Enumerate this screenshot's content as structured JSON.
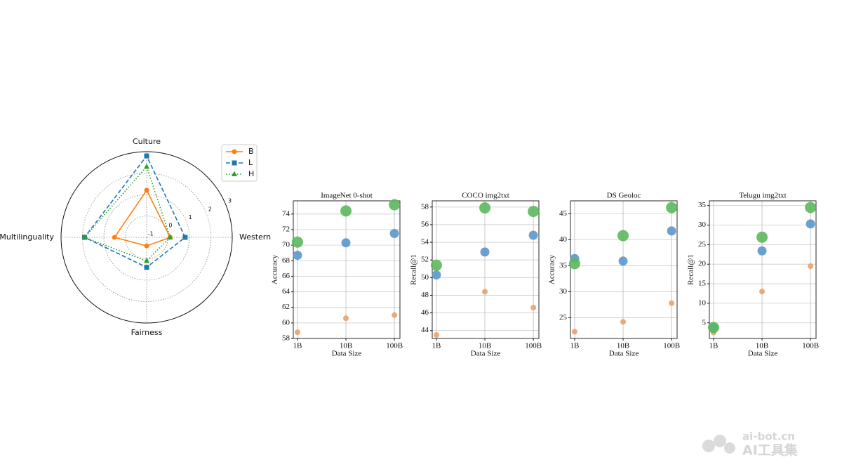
{
  "chart_data": [
    {
      "type": "radar",
      "categories": [
        "Western",
        "Culture",
        "Multilinguality",
        "Fairness"
      ],
      "rlim": [
        -1,
        3
      ],
      "rticks": [
        -1,
        0,
        1,
        2,
        3
      ],
      "legend": "upper right",
      "series": [
        {
          "name": "B",
          "color": "#ff7f0e",
          "marker": "circle",
          "linestyle": "solid",
          "values": [
            0.1,
            1.2,
            0.5,
            -0.6
          ]
        },
        {
          "name": "L",
          "color": "#1f77b4",
          "marker": "square",
          "linestyle": "dashed",
          "values": [
            0.8,
            2.8,
            1.9,
            0.4
          ]
        },
        {
          "name": "H",
          "color": "#2ca02c",
          "marker": "triangle",
          "linestyle": "dotted",
          "values": [
            0.1,
            2.3,
            1.9,
            0.1
          ]
        }
      ]
    },
    {
      "type": "scatter",
      "title": "ImageNet 0-shot",
      "x_label": "Data Size",
      "y_label": "Accuracy",
      "log_x": true,
      "grid": true,
      "x": [
        1,
        10,
        100
      ],
      "xlim": [
        0.82,
        130
      ],
      "xticks": [
        {
          "value": 1,
          "label": "1B"
        },
        {
          "value": 10,
          "label": "10B"
        },
        {
          "value": 100,
          "label": "100B"
        }
      ],
      "ylim": [
        58,
        75.7
      ],
      "yticks": [
        58,
        60,
        62,
        64,
        66,
        68,
        70,
        72,
        74
      ],
      "series": [
        {
          "color": "#e8a26a",
          "marker_size": 4,
          "values": [
            58.8,
            60.6,
            61.0
          ]
        },
        {
          "color": "#5b97c9",
          "marker_size": 6.5,
          "values": [
            68.7,
            70.3,
            71.5
          ]
        },
        {
          "color": "#5cb85c",
          "marker_size": 8,
          "values": [
            70.4,
            74.4,
            75.2
          ]
        }
      ]
    },
    {
      "type": "scatter",
      "title": "COCO img2txt",
      "x_label": "Data Size",
      "y_label": "Recall@1",
      "log_x": true,
      "grid": true,
      "x": [
        1,
        10,
        100
      ],
      "xlim": [
        0.82,
        130
      ],
      "xticks": [
        {
          "value": 1,
          "label": "1B"
        },
        {
          "value": 10,
          "label": "10B"
        },
        {
          "value": 100,
          "label": "100B"
        }
      ],
      "ylim": [
        43.1,
        58.7
      ],
      "yticks": [
        44,
        46,
        48,
        50,
        52,
        54,
        56,
        58
      ],
      "series": [
        {
          "color": "#e8a26a",
          "marker_size": 4,
          "values": [
            43.5,
            48.4,
            46.6
          ]
        },
        {
          "color": "#5b97c9",
          "marker_size": 6.5,
          "values": [
            50.3,
            52.9,
            54.8
          ]
        },
        {
          "color": "#5cb85c",
          "marker_size": 8,
          "values": [
            51.4,
            57.9,
            57.5
          ]
        }
      ]
    },
    {
      "type": "scatter",
      "title": "DS Geoloc",
      "x_label": "Data Size",
      "y_label": "Accuracy",
      "log_x": true,
      "grid": true,
      "x": [
        1,
        10,
        100
      ],
      "xlim": [
        0.82,
        130
      ],
      "xticks": [
        {
          "value": 1,
          "label": "1B"
        },
        {
          "value": 10,
          "label": "10B"
        },
        {
          "value": 100,
          "label": "100B"
        }
      ],
      "ylim": [
        21,
        47.5
      ],
      "yticks": [
        25,
        30,
        35,
        40,
        45
      ],
      "series": [
        {
          "color": "#e8a26a",
          "marker_size": 4,
          "values": [
            22.3,
            24.2,
            27.8
          ]
        },
        {
          "color": "#5b97c9",
          "marker_size": 6.5,
          "values": [
            36.4,
            35.9,
            41.7
          ]
        },
        {
          "color": "#5cb85c",
          "marker_size": 8,
          "values": [
            35.4,
            40.8,
            46.2
          ]
        }
      ]
    },
    {
      "type": "scatter",
      "title": "Telugu img2txt",
      "x_label": "Data Size",
      "y_label": "Recall@1",
      "log_x": true,
      "grid": true,
      "x": [
        1,
        10,
        100
      ],
      "xlim": [
        0.82,
        130
      ],
      "xticks": [
        {
          "value": 1,
          "label": "1B"
        },
        {
          "value": 10,
          "label": "10B"
        },
        {
          "value": 100,
          "label": "100B"
        }
      ],
      "ylim": [
        1,
        36.2
      ],
      "yticks": [
        5,
        10,
        15,
        20,
        25,
        30,
        35
      ],
      "series": [
        {
          "color": "#e8a26a",
          "marker_size": 4,
          "values": [
            2.5,
            13.0,
            19.5
          ]
        },
        {
          "color": "#5b97c9",
          "marker_size": 6.5,
          "values": [
            3.8,
            23.4,
            30.3
          ]
        },
        {
          "color": "#5cb85c",
          "marker_size": 8,
          "values": [
            3.8,
            26.9,
            34.5
          ]
        }
      ]
    }
  ],
  "watermark": {
    "domain": "ai-bot.cn",
    "name": "AI工具集"
  }
}
